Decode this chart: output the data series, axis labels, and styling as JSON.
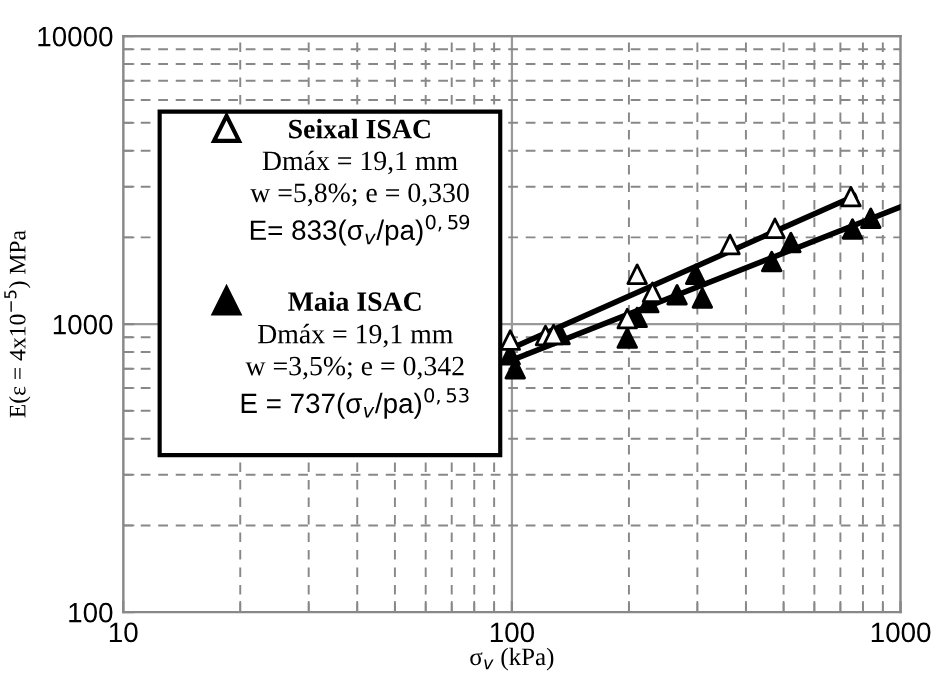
{
  "chart_data": {
    "type": "scatter",
    "xlabel": "σ$_{v}$ (kPa)",
    "ylabel": "E(ε = 4x10$^{−5}$) MPa",
    "log": "xy",
    "xlim": [
      10,
      1000
    ],
    "ylim": [
      100,
      10000
    ],
    "xticks": [
      10,
      100,
      1000
    ],
    "yticks": [
      100,
      1000,
      10000
    ],
    "grid": true,
    "legend": "top left",
    "annotations": [
      "Dmáx = 19,1 mm",
      "w =5,8%; e = 0,330",
      "E= 833(σ$_{v}$/pa)$^{0,59}$",
      "Dmáx = 19,1 mm",
      "w =3,5%; e = 0,342",
      "E = 737(σ$_{v}$/pa)$^{0,53}$"
    ],
    "series": [
      {
        "name": "Seixal ISAC",
        "color": "#ffffff",
        "marker": "triangle",
        "x": [
          99,
          122,
          128,
          198,
          210,
          230,
          364,
          475,
          745
        ],
        "values": [
          880,
          913,
          920,
          1045,
          1490,
          1290,
          1890,
          2150,
          2770
        ]
      },
      {
        "name": "Maia ISAC",
        "color": "#000000",
        "marker": "triangle",
        "x": [
          99,
          102,
          133,
          198,
          210,
          225,
          266,
          297,
          309,
          466,
          522,
          752,
          838
        ],
        "values": [
          783,
          700,
          920,
          894,
          1055,
          1187,
          1265,
          1490,
          1232,
          1650,
          1920,
          2140,
          2330
        ]
      },
      {
        "type": "line",
        "color": "#000000",
        "x": [
          100,
          760
        ],
        "values": [
          826,
          2780
        ]
      },
      {
        "type": "line",
        "color": "#000000",
        "x": [
          100,
          1000
        ],
        "values": [
          750,
          2550
        ]
      }
    ]
  }
}
